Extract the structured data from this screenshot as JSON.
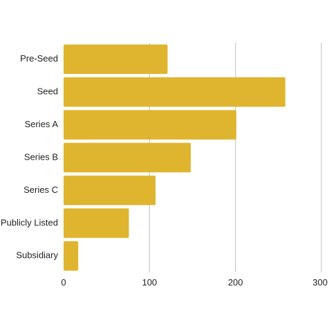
{
  "chart_data": {
    "type": "bar",
    "orientation": "horizontal",
    "categories": [
      "Pre-Seed",
      "Seed",
      "Series A",
      "Series B",
      "Series C",
      "Publicly Listed",
      "Subsidiary"
    ],
    "values": [
      121,
      258,
      201,
      148,
      107,
      76,
      17
    ],
    "title": "",
    "xlabel": "",
    "ylabel": "",
    "xlim": [
      0,
      300
    ],
    "xticks": [
      "0",
      "100",
      "200",
      "300"
    ],
    "grid": "vertical",
    "legend": "none",
    "bar_color": "#DFB52F",
    "grid_color": "#C8C8C8"
  }
}
